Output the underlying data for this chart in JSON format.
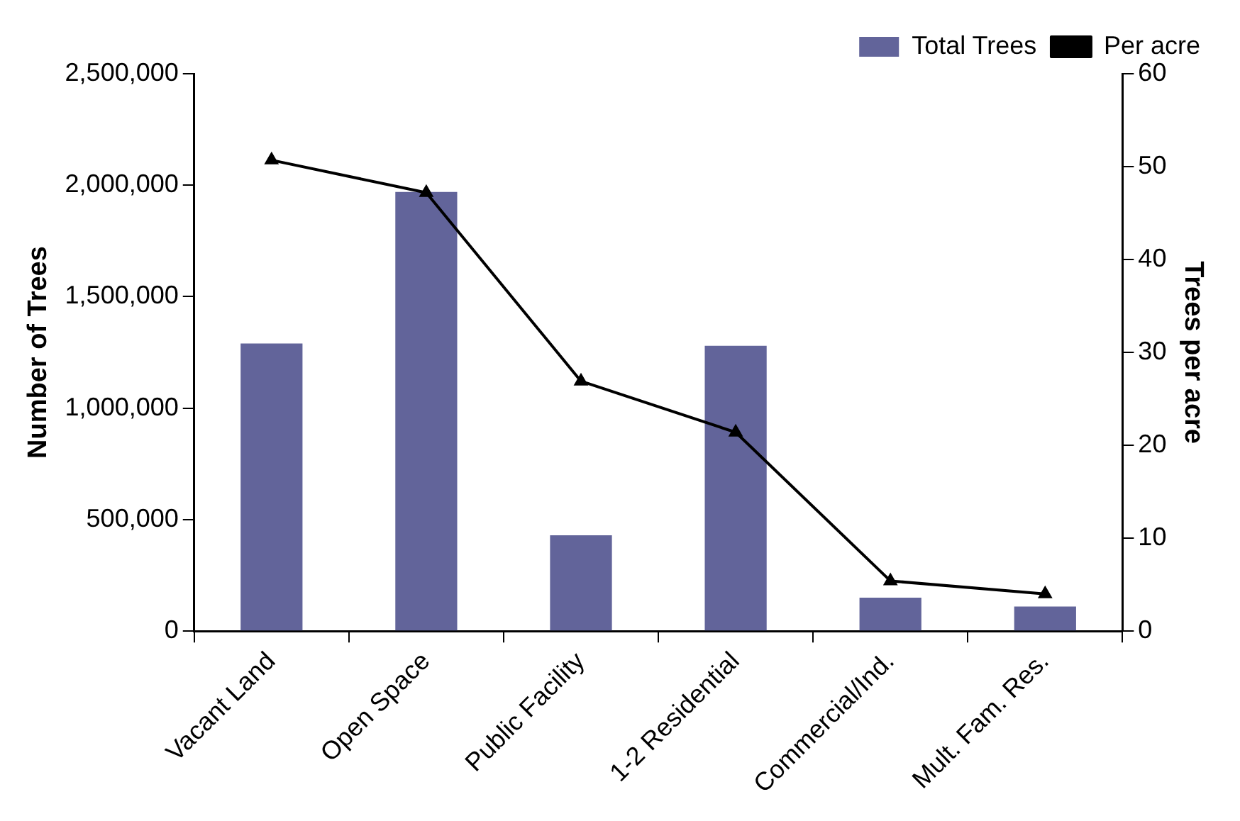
{
  "chart_data": {
    "type": "bar",
    "categories": [
      "Vacant Land",
      "Open Space",
      "Public Facility",
      "1-2 Residential",
      "Commercial/Ind.",
      "Mult. Fam. Res."
    ],
    "series": [
      {
        "name": "Total Trees",
        "color": "#62649a",
        "values": [
          1290000,
          1970000,
          430000,
          1280000,
          150000,
          110000
        ]
      },
      {
        "name": "Per acre",
        "type": "line",
        "axis": "y2",
        "color": "#000000",
        "marker": "triangle",
        "values": [
          50.7,
          47.2,
          26.9,
          21.4,
          5.4,
          4.0
        ]
      }
    ],
    "ylabel": "Number of Trees",
    "y2label": "Trees per acre",
    "ylim": [
      0,
      2500000
    ],
    "yticks": [
      0,
      {
        "value": 500000,
        "label": "500,000"
      },
      {
        "value": 1000000,
        "label": "1,000,000"
      },
      {
        "value": 1500000,
        "label": "1,500,000"
      },
      {
        "value": 2000000,
        "label": "2,000,000"
      },
      {
        "value": 2500000,
        "label": "2,500,000"
      }
    ],
    "y2lim": [
      0,
      60
    ],
    "y2ticks": [
      0,
      10,
      20,
      30,
      40,
      50,
      60
    ],
    "grid": false,
    "legend": "top right"
  }
}
